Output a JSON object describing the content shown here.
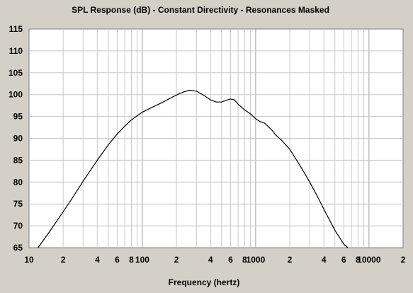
{
  "chart_data": {
    "type": "line",
    "title": "SPL Response (dB) - Constant Directivity - Resonances Masked",
    "xlabel": "Frequency (hertz)",
    "ylabel": "",
    "x_scale": "log",
    "xlim": [
      10,
      20000
    ],
    "ylim": [
      65,
      115
    ],
    "grid": true,
    "x_ticks": [
      {
        "value": 10,
        "label": "10"
      },
      {
        "value": 20,
        "label": "2"
      },
      {
        "value": 40,
        "label": "4"
      },
      {
        "value": 60,
        "label": "6"
      },
      {
        "value": 80,
        "label": "8"
      },
      {
        "value": 100,
        "label": "100"
      },
      {
        "value": 200,
        "label": "2"
      },
      {
        "value": 400,
        "label": "4"
      },
      {
        "value": 600,
        "label": "6"
      },
      {
        "value": 800,
        "label": "8"
      },
      {
        "value": 1000,
        "label": "1000"
      },
      {
        "value": 2000,
        "label": "2"
      },
      {
        "value": 4000,
        "label": "4"
      },
      {
        "value": 6000,
        "label": "6"
      },
      {
        "value": 8000,
        "label": "8"
      },
      {
        "value": 10000,
        "label": "10000"
      },
      {
        "value": 20000,
        "label": "2"
      }
    ],
    "y_ticks": [
      65,
      70,
      75,
      80,
      85,
      90,
      95,
      100,
      105,
      110,
      115
    ],
    "series": [
      {
        "color": "#000000",
        "x": [
          12,
          15,
          20,
          25,
          30,
          40,
          50,
          60,
          70,
          80,
          100,
          120,
          150,
          180,
          200,
          230,
          260,
          300,
          350,
          400,
          450,
          500,
          550,
          600,
          650,
          700,
          800,
          900,
          1000,
          1100,
          1200,
          1400,
          1500,
          1700,
          2000,
          2500,
          3000,
          3500,
          4000,
          5000,
          6000,
          6500
        ],
        "y": [
          65,
          68.5,
          73.2,
          77,
          80.2,
          85.0,
          88.5,
          91.0,
          92.8,
          94.2,
          96.0,
          97.0,
          98.2,
          99.3,
          99.9,
          100.6,
          101.0,
          100.8,
          99.8,
          98.8,
          98.3,
          98.3,
          98.7,
          99.0,
          98.8,
          97.8,
          96.5,
          95.6,
          94.5,
          93.8,
          93.5,
          91.8,
          90.8,
          89.5,
          87.5,
          83.5,
          80.0,
          76.8,
          73.8,
          69.0,
          65.8,
          65
        ]
      }
    ]
  },
  "colors": {
    "background": "#d4d0c8",
    "plot_background": "#ffffff",
    "grid": "#c8c8c8",
    "axis": "#808080",
    "line": "#000000"
  }
}
